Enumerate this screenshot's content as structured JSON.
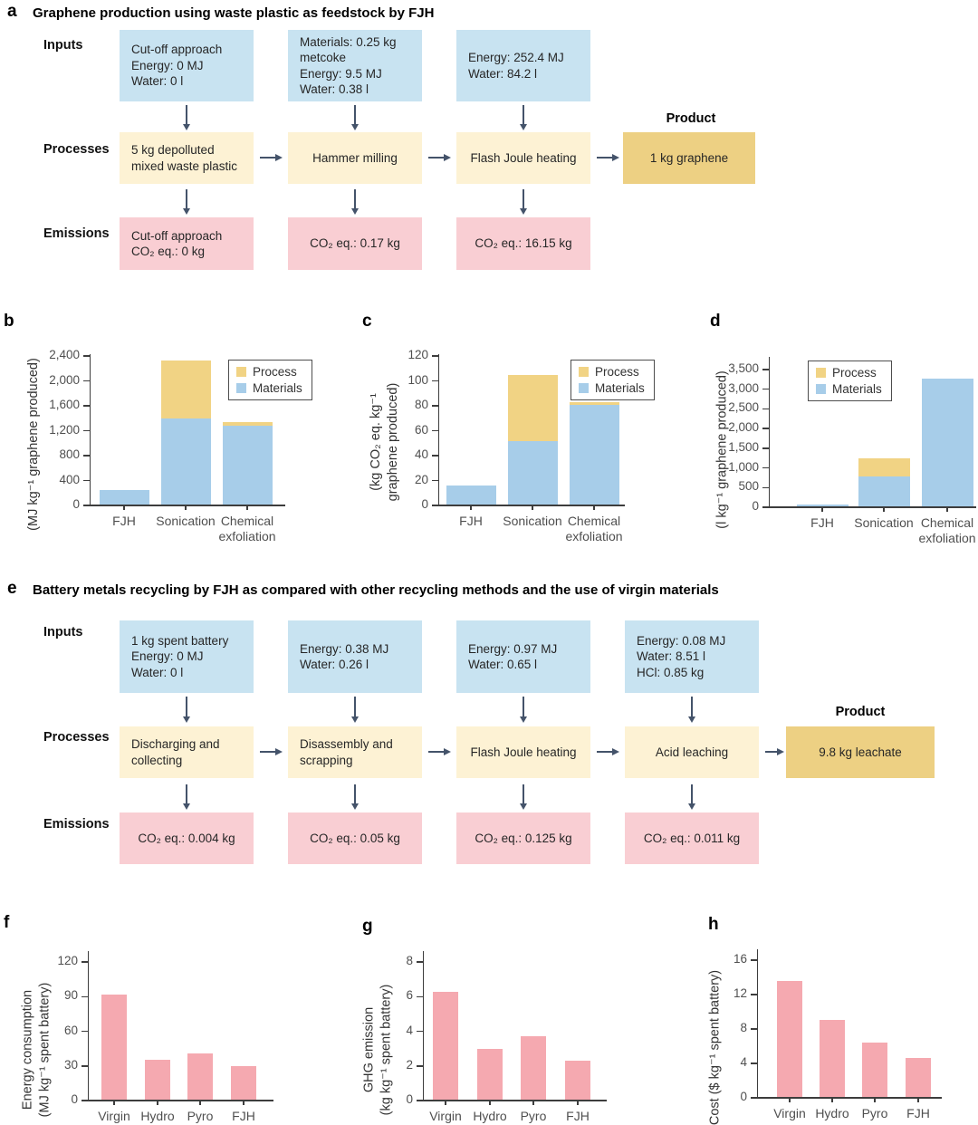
{
  "colors": {
    "input_box": "#c8e3f1",
    "process_box": "#fdf2d4",
    "product_box": "#edd083",
    "emission_box": "#f9ced3",
    "arrow": "#44536a",
    "axis": "#3d3d3d",
    "tick_text": "#4f4f4f",
    "bar_process_yellow": "#f1d384",
    "bar_materials_blue": "#a7cde9",
    "bar_pink": "#f5a9b0"
  },
  "panel_a": {
    "label": "a",
    "title": "Graphene production using waste plastic as feedstock by FJH",
    "row_labels": {
      "inputs": "Inputs",
      "processes": "Processes",
      "emissions": "Emissions"
    },
    "inputs": [
      "Cut-off approach\nEnergy: 0 MJ\nWater: 0 l",
      "Materials: 0.25 kg\nmetcoke\nEnergy: 9.5 MJ\nWater: 0.38 l",
      "Energy: 252.4 MJ\nWater: 84.2 l"
    ],
    "processes": [
      "5 kg depolluted\nmixed waste plastic",
      "Hammer milling",
      "Flash Joule heating"
    ],
    "product_label": "Product",
    "product": "1 kg graphene",
    "emissions": [
      "Cut-off approach\nCO₂ eq.: 0 kg",
      "CO₂ eq.: 0.17 kg",
      "CO₂ eq.: 16.15 kg"
    ]
  },
  "panel_e": {
    "label": "e",
    "title": "Battery metals recycling by FJH as compared with other recycling methods and the use of virgin materials",
    "row_labels": {
      "inputs": "Inputs",
      "processes": "Processes",
      "emissions": "Emissions"
    },
    "inputs": [
      "1 kg spent battery\nEnergy: 0 MJ\nWater: 0 l",
      "Energy: 0.38 MJ\nWater: 0.26 l",
      "Energy: 0.97 MJ\nWater: 0.65 l",
      "Energy: 0.08 MJ\nWater: 8.51 l\nHCl: 0.85 kg"
    ],
    "processes": [
      "Discharging and\ncollecting",
      "Disassembly and\nscrapping",
      "Flash Joule heating",
      "Acid leaching"
    ],
    "product_label": "Product",
    "product": "9.8 kg leachate",
    "emissions": [
      "CO₂ eq.: 0.004 kg",
      "CO₂ eq.: 0.05 kg",
      "CO₂ eq.: 0.125 kg",
      "CO₂ eq.: 0.011 kg"
    ]
  },
  "chart_data": [
    {
      "id": "b",
      "panel_label": "b",
      "type": "bar",
      "stacked": true,
      "categories": [
        "FJH",
        "Sonication",
        "Chemical\nexfoliation"
      ],
      "series": [
        {
          "name": "Materials",
          "color": "#a7cde9",
          "values": [
            250,
            1390,
            1280
          ]
        },
        {
          "name": "Process",
          "color": "#f1d384",
          "values": [
            0,
            940,
            60
          ]
        }
      ],
      "title": "",
      "xlabel": "",
      "ylabel": "(MJ kg⁻¹ graphene produced)",
      "ylim": [
        0,
        2400
      ],
      "yticks": [
        "0",
        "400",
        "800",
        "1,200",
        "1,600",
        "2,000",
        "2,400"
      ],
      "grid": false,
      "legend": {
        "position": "top-right",
        "entries": [
          {
            "label": "Process",
            "color": "#f1d384"
          },
          {
            "label": "Materials",
            "color": "#a7cde9"
          }
        ]
      }
    },
    {
      "id": "c",
      "panel_label": "c",
      "type": "bar",
      "stacked": true,
      "categories": [
        "FJH",
        "Sonication",
        "Chemical\nexfoliation"
      ],
      "series": [
        {
          "name": "Materials",
          "color": "#a7cde9",
          "values": [
            16,
            52,
            81
          ]
        },
        {
          "name": "Process",
          "color": "#f1d384",
          "values": [
            0,
            53,
            2
          ]
        }
      ],
      "title": "",
      "xlabel": "",
      "ylabel": "(kg CO₂ eq. kg⁻¹\ngraphene produced)",
      "ylim": [
        0,
        120
      ],
      "yticks": [
        "0",
        "20",
        "40",
        "60",
        "80",
        "100",
        "120"
      ],
      "grid": false,
      "legend": {
        "position": "top-right",
        "entries": [
          {
            "label": "Process",
            "color": "#f1d384"
          },
          {
            "label": "Materials",
            "color": "#a7cde9"
          }
        ]
      }
    },
    {
      "id": "d",
      "panel_label": "d",
      "type": "bar",
      "stacked": true,
      "categories": [
        "FJH",
        "Sonication",
        "Chemical\nexfoliation"
      ],
      "series": [
        {
          "name": "Materials",
          "color": "#a7cde9",
          "values": [
            80,
            780,
            3270
          ]
        },
        {
          "name": "Process",
          "color": "#f1d384",
          "values": [
            0,
            470,
            0
          ]
        }
      ],
      "title": "",
      "xlabel": "",
      "ylabel": "(l kg⁻¹ graphene produced)",
      "ylim": [
        0,
        3500
      ],
      "yticks": [
        "0",
        "500",
        "1,000",
        "1,500",
        "2,000",
        "2,500",
        "3,000",
        "3,500"
      ],
      "grid": false,
      "legend": {
        "position": "top-left",
        "entries": [
          {
            "label": "Process",
            "color": "#f1d384"
          },
          {
            "label": "Materials",
            "color": "#a7cde9"
          }
        ]
      }
    },
    {
      "id": "f",
      "panel_label": "f",
      "type": "bar",
      "stacked": false,
      "categories": [
        "Virgin",
        "Hydro",
        "Pyro",
        "FJH"
      ],
      "series": [
        {
          "name": "Energy consumption",
          "color": "#f5a9b0",
          "values": [
            92,
            35,
            41,
            30
          ]
        }
      ],
      "title": "",
      "xlabel": "",
      "ylabel": "Energy consumption\n(MJ kg⁻¹ spent battery)",
      "ylim": [
        0,
        120
      ],
      "yticks": [
        "0",
        "30",
        "60",
        "90",
        "120"
      ],
      "grid": false,
      "legend": null
    },
    {
      "id": "g",
      "panel_label": "g",
      "type": "bar",
      "stacked": false,
      "categories": [
        "Virgin",
        "Hydro",
        "Pyro",
        "FJH"
      ],
      "series": [
        {
          "name": "GHG emission",
          "color": "#f5a9b0",
          "values": [
            6.3,
            3.0,
            3.7,
            2.3
          ]
        }
      ],
      "title": "",
      "xlabel": "",
      "ylabel": "GHG emission\n(kg kg⁻¹ spent battery)",
      "ylim": [
        0,
        8
      ],
      "yticks": [
        "0",
        "2",
        "4",
        "6",
        "8"
      ],
      "grid": false,
      "legend": null
    },
    {
      "id": "h",
      "panel_label": "h",
      "type": "bar",
      "stacked": false,
      "categories": [
        "Virgin",
        "Hydro",
        "Pyro",
        "FJH"
      ],
      "series": [
        {
          "name": "Cost",
          "color": "#f5a9b0",
          "values": [
            13.6,
            9.1,
            6.4,
            4.6
          ]
        }
      ],
      "title": "",
      "xlabel": "",
      "ylabel": "Cost ($ kg⁻¹ spent battery)",
      "ylim": [
        0,
        16
      ],
      "yticks": [
        "0",
        "4",
        "8",
        "12",
        "16"
      ],
      "grid": false,
      "legend": null
    }
  ]
}
